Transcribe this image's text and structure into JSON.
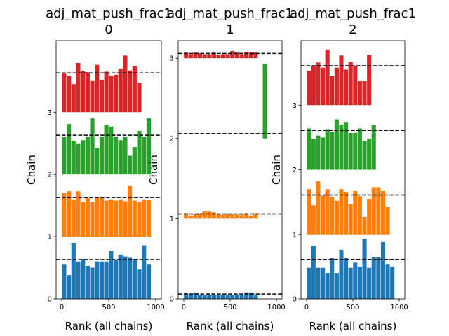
{
  "chart_data": [
    {
      "type": "bar",
      "title": [
        "adj_mat_push_frac1",
        "0"
      ],
      "xlabel": "Rank (all chains)",
      "ylabel": "Chain",
      "xlim": [
        -60,
        1060
      ],
      "ylim": [
        0,
        4.15
      ],
      "xticks": [
        0,
        500,
        1000
      ],
      "yticks": [
        0,
        1,
        2,
        3
      ],
      "grid": false,
      "bin_width": 50,
      "x": [
        0,
        50,
        100,
        150,
        200,
        250,
        300,
        350,
        400,
        450,
        500,
        550,
        600,
        650,
        700,
        750,
        800,
        850,
        900,
        950
      ],
      "series": [
        {
          "chain": 0,
          "color": "#1f77b4",
          "baseline": 0,
          "reference": 0.63,
          "values": [
            0.56,
            0.38,
            0.9,
            0.6,
            0.64,
            0.53,
            0.5,
            0.6,
            0.6,
            0.6,
            0.77,
            0.63,
            0.71,
            0.68,
            0.67,
            0.64,
            0.47,
            0.86,
            0.56,
            0.0
          ]
        },
        {
          "chain": 1,
          "color": "#ff7f0e",
          "baseline": 1,
          "reference": 1.63,
          "values": [
            1.7,
            1.73,
            1.6,
            1.73,
            1.56,
            1.62,
            1.56,
            1.63,
            1.62,
            1.58,
            1.6,
            1.58,
            1.6,
            1.57,
            1.82,
            1.58,
            1.56,
            1.6,
            1.59,
            0.0
          ]
        },
        {
          "chain": 2,
          "color": "#2ca02c",
          "baseline": 2,
          "reference": 2.63,
          "values": [
            2.6,
            2.81,
            2.54,
            2.5,
            2.55,
            2.6,
            2.9,
            2.42,
            2.6,
            2.8,
            2.77,
            2.6,
            2.55,
            2.6,
            2.3,
            2.44,
            2.7,
            2.6,
            2.9,
            0.0
          ]
        },
        {
          "chain": 3,
          "color": "#d62728",
          "baseline": 3,
          "reference": 3.63,
          "values": [
            3.62,
            3.58,
            3.45,
            3.79,
            3.66,
            3.64,
            3.5,
            3.76,
            3.52,
            3.65,
            3.58,
            3.6,
            3.7,
            3.91,
            3.67,
            3.74,
            3.47,
            0.0,
            0.0,
            0.0
          ]
        }
      ]
    },
    {
      "type": "bar",
      "title": [
        "adj_mat_push_frac1",
        "1"
      ],
      "xlabel": "Rank (all chains)",
      "ylabel": "Chain",
      "xlim": [
        -60,
        1060
      ],
      "ylim": [
        0,
        3.22
      ],
      "xticks": [
        0,
        500,
        1000
      ],
      "yticks": [
        0,
        1,
        2,
        3
      ],
      "grid": false,
      "bin_width": 50,
      "x": [
        0,
        50,
        100,
        150,
        200,
        250,
        300,
        350,
        400,
        450,
        500,
        550,
        600,
        650,
        700,
        750,
        800,
        850,
        900,
        950
      ],
      "series": [
        {
          "chain": 0,
          "color": "#1f77b4",
          "baseline": 0,
          "reference": 0.06,
          "values": [
            0.07,
            0.05,
            0.08,
            0.05,
            0.05,
            0.05,
            0.05,
            0.05,
            0.05,
            0.05,
            0.05,
            0.05,
            0.05,
            0.08,
            0.08,
            0.05,
            0.0,
            0.0,
            0.0,
            0.0
          ]
        },
        {
          "chain": 1,
          "color": "#ff7f0e",
          "baseline": 1,
          "reference": 1.06,
          "values": [
            1.07,
            1.04,
            1.06,
            1.07,
            1.09,
            1.09,
            1.08,
            1.06,
            1.05,
            1.06,
            1.06,
            1.05,
            1.05,
            1.07,
            1.04,
            1.07,
            0.0,
            0.0,
            0.0,
            0.0
          ]
        },
        {
          "chain": 2,
          "color": "#2ca02c",
          "baseline": 2,
          "reference": 2.06,
          "values": [
            0,
            0,
            0,
            0,
            0,
            0,
            0,
            0,
            0,
            0,
            0,
            0,
            0,
            0,
            0,
            0,
            0,
            2.93,
            0,
            0
          ]
        },
        {
          "chain": 3,
          "color": "#d62728",
          "baseline": 3,
          "reference": 3.06,
          "values": [
            3.07,
            3.05,
            3.07,
            3.06,
            3.05,
            3.05,
            3.07,
            3.04,
            3.05,
            3.05,
            3.09,
            3.07,
            3.05,
            3.08,
            3.07,
            3.07,
            0.0,
            0.0,
            0.0,
            0.0
          ]
        }
      ]
    },
    {
      "type": "bar",
      "title": [
        "adj_mat_push_frac1",
        "2"
      ],
      "xlabel": "Rank (all chains)",
      "ylabel": "Chain",
      "xlim": [
        -60,
        1060
      ],
      "ylim": [
        0,
        4.0
      ],
      "xticks": [
        0,
        500,
        1000
      ],
      "yticks": [
        0,
        1,
        2,
        3
      ],
      "grid": false,
      "bin_width": 50,
      "x": [
        0,
        50,
        100,
        150,
        200,
        250,
        300,
        350,
        400,
        450,
        500,
        550,
        600,
        650,
        700,
        750,
        800,
        850,
        900,
        950
      ],
      "series": [
        {
          "chain": 0,
          "color": "#1f77b4",
          "baseline": 0,
          "reference": 0.61,
          "values": [
            0.48,
            0.82,
            0.48,
            0.48,
            0.4,
            0.63,
            0.4,
            0.76,
            0.64,
            0.48,
            0.56,
            0.5,
            0.93,
            0.48,
            0.65,
            0.65,
            0.88,
            0.54,
            0.5,
            0.0
          ]
        },
        {
          "chain": 1,
          "color": "#ff7f0e",
          "baseline": 1,
          "reference": 1.61,
          "values": [
            1.7,
            1.45,
            1.82,
            1.6,
            1.7,
            1.58,
            1.52,
            1.7,
            1.66,
            1.47,
            1.67,
            1.59,
            1.27,
            1.55,
            1.73,
            1.73,
            1.67,
            1.42,
            0.0,
            0.0
          ]
        },
        {
          "chain": 2,
          "color": "#2ca02c",
          "baseline": 2,
          "reference": 2.61,
          "values": [
            2.64,
            2.48,
            2.53,
            2.5,
            2.63,
            2.58,
            2.78,
            2.7,
            2.74,
            2.57,
            2.57,
            2.64,
            2.45,
            2.48,
            2.69,
            0.0,
            0.0,
            0.0,
            0.0,
            0.0
          ]
        },
        {
          "chain": 3,
          "color": "#d62728",
          "baseline": 3,
          "reference": 3.61,
          "values": [
            3.53,
            3.61,
            3.66,
            3.58,
            3.86,
            3.45,
            3.58,
            3.77,
            3.55,
            3.67,
            3.6,
            3.37,
            3.37,
            3.78,
            0.0,
            0.0,
            0.0,
            0.0,
            0.0,
            0.0
          ]
        }
      ]
    }
  ]
}
